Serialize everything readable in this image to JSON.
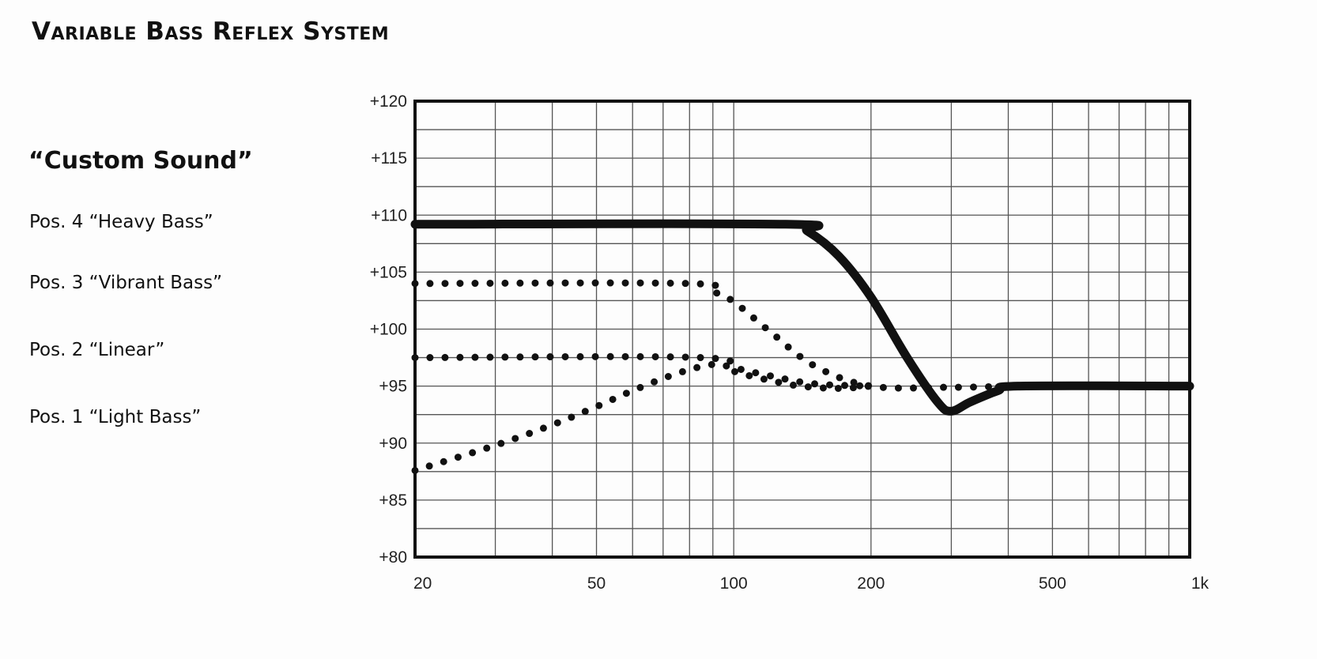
{
  "title": "Variable Bass Reflex System",
  "subtitle": "“Custom Sound”",
  "legend": [
    "Pos. 4 “Heavy Bass”",
    "Pos. 3 “Vibrant Bass”",
    "Pos. 2 “Linear”",
    "Pos. 1 “Light Bass”"
  ],
  "chart_data": {
    "type": "line",
    "x_scale": "log",
    "xlim": [
      20,
      1000
    ],
    "ylim": [
      80,
      120
    ],
    "x_ticks": [
      {
        "value": 20,
        "label": "20"
      },
      {
        "value": 50,
        "label": "50"
      },
      {
        "value": 100,
        "label": "100"
      },
      {
        "value": 200,
        "label": "200"
      },
      {
        "value": 500,
        "label": "500"
      },
      {
        "value": 1000,
        "label": "1k"
      }
    ],
    "y_ticks": [
      {
        "value": 120,
        "label": "+120"
      },
      {
        "value": 115,
        "label": "+115"
      },
      {
        "value": 110,
        "label": "+110"
      },
      {
        "value": 105,
        "label": "+105"
      },
      {
        "value": 100,
        "label": "+100"
      },
      {
        "value": 95,
        "label": "+95"
      },
      {
        "value": 90,
        "label": "+90"
      },
      {
        "value": 85,
        "label": "+85"
      },
      {
        "value": 80,
        "label": "+80"
      }
    ],
    "grid": true,
    "series": [
      {
        "name": "Pos. 4 “Heavy Bass”",
        "style": "solid",
        "x": [
          20,
          130,
          145,
          170,
          200,
          240,
          280,
          300,
          330,
          380,
          420,
          1000
        ],
        "y": [
          109.2,
          109.2,
          108.6,
          106.4,
          102.8,
          97.5,
          93.6,
          92.8,
          93.6,
          94.6,
          95.0,
          95.0
        ]
      },
      {
        "name": "Pos. 3 “Vibrant Bass”",
        "style": "dotted",
        "x": [
          20,
          80,
          90,
          100,
          120,
          150,
          200,
          300,
          420
        ],
        "y": [
          104.0,
          104.0,
          103.3,
          102.4,
          99.8,
          96.8,
          95.0,
          94.9,
          95.0
        ]
      },
      {
        "name": "Pos. 2 “Linear”",
        "style": "dotted",
        "x": [
          20,
          85,
          100,
          120,
          140,
          170,
          200
        ],
        "y": [
          97.5,
          97.5,
          96.3,
          95.5,
          95.0,
          94.8,
          95.0
        ]
      },
      {
        "name": "Pos. 1 “Light Bass”",
        "style": "dotted",
        "x": [
          20,
          30,
          40,
          50,
          60,
          75,
          90,
          100,
          120,
          150,
          200
        ],
        "y": [
          87.6,
          89.8,
          91.6,
          93.2,
          94.6,
          96.1,
          96.9,
          96.6,
          95.9,
          95.2,
          95.0
        ]
      }
    ]
  }
}
